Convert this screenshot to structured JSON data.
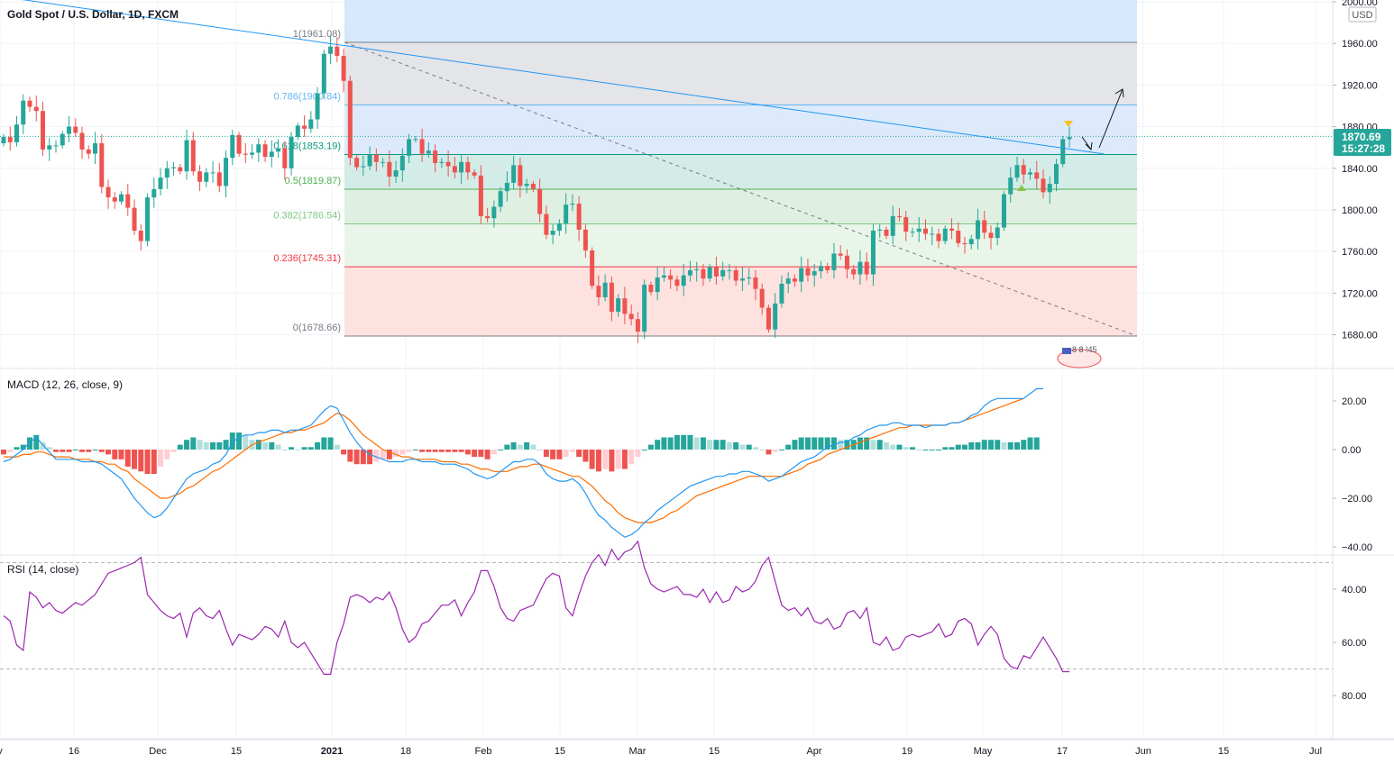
{
  "header": {
    "title": "Gold Spot / U.S. Dollar, 1D, FXCM",
    "currency": "USD"
  },
  "price_badge": {
    "price": "1870.69",
    "countdown": "15:27:28"
  },
  "events_label": "8 8 !45",
  "colors": {
    "up": "#26a69a",
    "down": "#ef5350",
    "macd_line": "#2196f3",
    "signal_line": "#ff6d00",
    "rsi_line": "#9c27b0",
    "trendline": "#2196f3"
  },
  "chart_data": [
    {
      "type": "candlestick",
      "title": "Gold Spot / U.S. Dollar, 1D, FXCM",
      "ylim": [
        1675,
        2000
      ],
      "y_ticks": [
        "2000.00",
        "1960.00",
        "1920.00",
        "1880.00",
        "1840.00",
        "1800.00",
        "1760.00",
        "1720.00",
        "1680.00"
      ],
      "x_ticks": [
        "v",
        "16",
        "Dec",
        "15",
        "2021",
        "18",
        "Feb",
        "15",
        "Mar",
        "15",
        "Apr",
        "19",
        "May",
        "17",
        "Jun",
        "15",
        "Jul"
      ],
      "fibonacci": [
        {
          "level": "1",
          "value": 1961.08,
          "label": "1(1961.08)"
        },
        {
          "level": "0.786",
          "value": 1900.84,
          "label": "0.786(1900.84)"
        },
        {
          "level": "0.618",
          "value": 1853.19,
          "label": "0.618(1853.19)"
        },
        {
          "level": "0.5",
          "value": 1819.87,
          "label": "0.5(1819.87)"
        },
        {
          "level": "0.382",
          "value": 1786.54,
          "label": "0.382(1786.54)"
        },
        {
          "level": "0.236",
          "value": 1745.31,
          "label": "0.236(1745.31)"
        },
        {
          "level": "0",
          "value": 1678.66,
          "label": "0(1678.66)"
        }
      ],
      "last_price": 1870.69,
      "close": [
        1870,
        1865,
        1882,
        1905,
        1899,
        1895,
        1858,
        1862,
        1862,
        1873,
        1880,
        1874,
        1858,
        1854,
        1864,
        1822,
        1812,
        1808,
        1815,
        1802,
        1780,
        1770,
        1812,
        1820,
        1831,
        1840,
        1841,
        1837,
        1867,
        1837,
        1827,
        1836,
        1836,
        1823,
        1850,
        1872,
        1854,
        1853,
        1855,
        1863,
        1851,
        1856,
        1859,
        1840,
        1870,
        1881,
        1878,
        1887,
        1912,
        1950,
        1957,
        1948,
        1924,
        1850,
        1841,
        1842,
        1853,
        1846,
        1846,
        1832,
        1838,
        1852,
        1868,
        1868,
        1854,
        1857,
        1845,
        1846,
        1842,
        1836,
        1846,
        1836,
        1833,
        1794,
        1792,
        1803,
        1818,
        1826,
        1843,
        1823,
        1825,
        1820,
        1796,
        1776,
        1780,
        1787,
        1805,
        1806,
        1781,
        1761,
        1727,
        1716,
        1730,
        1702,
        1715,
        1700,
        1695,
        1683,
        1728,
        1721,
        1735,
        1737,
        1733,
        1727,
        1737,
        1742,
        1743,
        1734,
        1745,
        1736,
        1742,
        1742,
        1732,
        1734,
        1735,
        1724,
        1706,
        1685,
        1710,
        1729,
        1734,
        1731,
        1744,
        1737,
        1741,
        1746,
        1742,
        1758,
        1756,
        1743,
        1738,
        1750,
        1738,
        1780,
        1781,
        1775,
        1794,
        1793,
        1779,
        1779,
        1782,
        1777,
        1777,
        1770,
        1782,
        1780,
        1768,
        1767,
        1772,
        1790,
        1778,
        1773,
        1783,
        1815,
        1831,
        1843,
        1834,
        1836,
        1830,
        1817,
        1825,
        1844,
        1868,
        1870
      ],
      "volume_unused": null,
      "annotation": "projection arrow toward 1915"
    },
    {
      "type": "line",
      "title": "MACD (12, 26, close, 9)",
      "ylim": [
        -42,
        30
      ],
      "y_ticks": [
        "20.00",
        "0.00",
        "−20.00",
        "−40.00"
      ],
      "series": [
        {
          "name": "MACD",
          "values": [
            -5,
            -4,
            -2,
            0,
            3,
            5,
            2,
            -1,
            -4,
            -4,
            -4,
            -4,
            -5,
            -5,
            -5,
            -6,
            -8,
            -10,
            -12,
            -16,
            -20,
            -23,
            -26,
            -28,
            -27,
            -24,
            -20,
            -16,
            -12,
            -10,
            -9,
            -8,
            -6,
            -5,
            -2,
            3,
            5,
            6,
            6,
            7,
            7,
            8,
            8,
            7,
            8,
            8,
            9,
            10,
            13,
            16,
            18,
            17,
            12,
            7,
            3,
            0,
            -2,
            -3,
            -4,
            -5,
            -5,
            -5,
            -4,
            -4,
            -5,
            -5,
            -5,
            -6,
            -6,
            -6,
            -7,
            -8,
            -10,
            -11,
            -12,
            -11,
            -9,
            -7,
            -5,
            -5,
            -4,
            -4,
            -6,
            -10,
            -12,
            -13,
            -13,
            -12,
            -14,
            -18,
            -23,
            -27,
            -29,
            -32,
            -34,
            -36,
            -35,
            -33,
            -30,
            -28,
            -25,
            -23,
            -21,
            -19,
            -17,
            -15,
            -14,
            -13,
            -12,
            -11,
            -11,
            -10,
            -10,
            -9,
            -9,
            -10,
            -11,
            -13,
            -12,
            -11,
            -9,
            -7,
            -5,
            -4,
            -3,
            -1,
            1,
            2,
            3,
            3,
            5,
            6,
            8,
            9,
            10,
            10,
            11,
            11,
            10,
            10,
            10,
            9,
            10,
            10,
            10,
            11,
            11,
            12,
            14,
            15,
            18,
            20,
            21,
            21,
            21,
            21,
            21,
            23,
            25,
            25
          ]
        },
        {
          "name": "Signal",
          "values": [
            -3,
            -3,
            -3,
            -2,
            -2,
            -1,
            -1,
            -2,
            -3,
            -3,
            -3,
            -4,
            -4,
            -4,
            -5,
            -5,
            -6,
            -6,
            -8,
            -9,
            -12,
            -14,
            -16,
            -18,
            -20,
            -20,
            -19,
            -18,
            -16,
            -15,
            -13,
            -11,
            -9,
            -8,
            -6,
            -4,
            -2,
            0,
            2,
            3,
            4,
            5,
            6,
            7,
            7,
            8,
            8,
            9,
            10,
            11,
            13,
            15,
            14,
            12,
            9,
            6,
            4,
            2,
            0,
            -1,
            -2,
            -3,
            -3,
            -4,
            -4,
            -4,
            -4,
            -5,
            -5,
            -5,
            -6,
            -6,
            -7,
            -8,
            -8,
            -9,
            -9,
            -9,
            -8,
            -7,
            -7,
            -6,
            -6,
            -7,
            -8,
            -9,
            -10,
            -11,
            -11,
            -13,
            -15,
            -18,
            -21,
            -23,
            -26,
            -28,
            -29,
            -30,
            -30,
            -30,
            -29,
            -28,
            -26,
            -25,
            -23,
            -21,
            -19,
            -18,
            -17,
            -16,
            -15,
            -14,
            -13,
            -12,
            -11,
            -11,
            -11,
            -11,
            -11,
            -11,
            -10,
            -9,
            -8,
            -6,
            -5,
            -4,
            -2,
            -1,
            0,
            1,
            2,
            3,
            4,
            5,
            6,
            7,
            8,
            9,
            9,
            10,
            10,
            10,
            10,
            10,
            10,
            11,
            11,
            12,
            13,
            14,
            15,
            16,
            17,
            18,
            19,
            20,
            21
          ]
        },
        {
          "name": "Histogram",
          "values": [
            -2,
            -1,
            1,
            2,
            5,
            6,
            3,
            1,
            -1,
            -1,
            -1,
            0,
            -1,
            -1,
            0,
            -1,
            -2,
            -4,
            -4,
            -7,
            -8,
            -9,
            -10,
            -10,
            -7,
            -4,
            -1,
            2,
            4,
            5,
            4,
            3,
            3,
            3,
            4,
            7,
            7,
            6,
            4,
            4,
            3,
            3,
            2,
            0,
            1,
            0,
            1,
            1,
            3,
            5,
            5,
            2,
            -2,
            -5,
            -6,
            -6,
            -6,
            -5,
            -4,
            -4,
            -3,
            -2,
            -1,
            0,
            -1,
            -1,
            -1,
            -1,
            -1,
            -1,
            -1,
            -2,
            -3,
            -3,
            -4,
            -2,
            0,
            2,
            3,
            2,
            3,
            2,
            0,
            -3,
            -4,
            -4,
            -3,
            -1,
            -3,
            -5,
            -8,
            -9,
            -8,
            -9,
            -8,
            -8,
            -6,
            -3,
            0,
            2,
            4,
            5,
            5,
            6,
            6,
            6,
            5,
            5,
            4,
            4,
            4,
            3,
            3,
            2,
            2,
            1,
            0,
            -2,
            -1,
            0,
            2,
            4,
            5,
            5,
            5,
            5,
            5,
            5,
            4,
            4,
            4,
            5,
            5,
            4,
            4,
            3,
            2,
            2,
            1,
            1,
            0,
            0,
            0,
            0,
            1,
            1,
            2,
            2,
            3,
            3,
            4,
            4,
            4,
            3,
            3,
            3,
            4,
            5,
            5
          ]
        }
      ]
    },
    {
      "type": "line",
      "title": "RSI (14, close)",
      "ylim": [
        22,
        90
      ],
      "y_ticks": [
        "80.00",
        "60.00",
        "40.00"
      ],
      "band": [
        30,
        70
      ],
      "series": [
        {
          "name": "RSI",
          "values": [
            50,
            52,
            61,
            63,
            41,
            43,
            47,
            45,
            48,
            49,
            47,
            45,
            46,
            44,
            42,
            38,
            34,
            33,
            32,
            31,
            30,
            28,
            42,
            45,
            48,
            50,
            51,
            49,
            58,
            49,
            47,
            50,
            51,
            48,
            55,
            61,
            57,
            58,
            59,
            57,
            54,
            55,
            58,
            52,
            60,
            62,
            60,
            64,
            68,
            72,
            72,
            60,
            53,
            43,
            42,
            43,
            45,
            43,
            44,
            41,
            47,
            55,
            60,
            58,
            53,
            52,
            49,
            46,
            46,
            44,
            50,
            45,
            41,
            33,
            33,
            39,
            47,
            51,
            52,
            48,
            47,
            46,
            41,
            36,
            34,
            35,
            47,
            50,
            42,
            35,
            30,
            27,
            31,
            25,
            29,
            26,
            25,
            22,
            32,
            38,
            40,
            41,
            40,
            39,
            42,
            42,
            43,
            40,
            45,
            41,
            45,
            44,
            39,
            41,
            40,
            37,
            31,
            28,
            37,
            46,
            48,
            47,
            50,
            47,
            52,
            53,
            51,
            55,
            54,
            49,
            48,
            51,
            47,
            60,
            61,
            58,
            63,
            62,
            58,
            57,
            58,
            57,
            56,
            53,
            58,
            57,
            52,
            51,
            53,
            61,
            57,
            54,
            57,
            66,
            69,
            70,
            65,
            66,
            62,
            58,
            62,
            66,
            71,
            71
          ]
        }
      ]
    }
  ]
}
